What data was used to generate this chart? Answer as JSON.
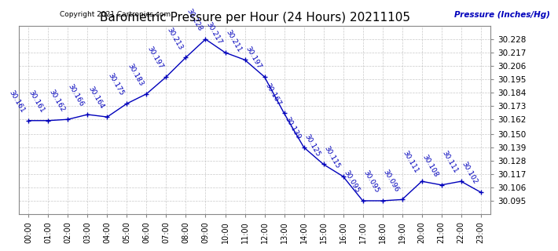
{
  "title": "Barometric Pressure per Hour (24 Hours) 20211105",
  "copyright": "Copyright 2021 Cartronics.com",
  "ylabel": "Pressure (Inches/Hg)",
  "hours": [
    0,
    1,
    2,
    3,
    4,
    5,
    6,
    7,
    8,
    9,
    10,
    11,
    12,
    13,
    14,
    15,
    16,
    17,
    18,
    19,
    20,
    21,
    22,
    23
  ],
  "values": [
    30.161,
    30.161,
    30.162,
    30.166,
    30.164,
    30.175,
    30.183,
    30.197,
    30.213,
    30.228,
    30.217,
    30.211,
    30.197,
    30.167,
    30.139,
    30.125,
    30.115,
    30.095,
    30.095,
    30.096,
    30.111,
    30.108,
    30.111,
    30.102
  ],
  "line_color": "#0000bb",
  "bg_color": "#ffffff",
  "grid_color": "#bbbbbb",
  "ylim_min": 30.084,
  "ylim_max": 30.239,
  "ytick_values": [
    30.095,
    30.106,
    30.117,
    30.128,
    30.139,
    30.15,
    30.162,
    30.173,
    30.184,
    30.195,
    30.206,
    30.217,
    30.228
  ],
  "title_fontsize": 11,
  "annotation_fontsize": 6.5,
  "xtick_fontsize": 7,
  "ytick_fontsize": 7.5
}
